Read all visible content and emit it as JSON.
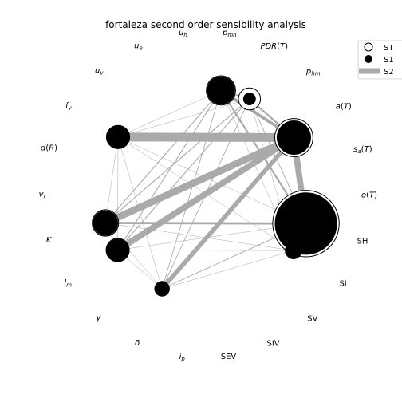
{
  "chart_data": {
    "type": "network",
    "title": "fortaleza second order sensibility analysis",
    "parameters": [
      {
        "id": "u_h",
        "label": "u_h",
        "label_html": "<tspan font-style=\"italic\">u</tspan><tspan font-size=\"7\" dy=\"2\" font-style=\"italic\">h</tspan>",
        "ST": 0.0,
        "S1": 0.0
      },
      {
        "id": "p_mh",
        "label": "p_mh",
        "label_html": "<tspan font-style=\"italic\">p</tspan><tspan font-size=\"7\" dy=\"2\" font-style=\"italic\">mh</tspan>",
        "ST": 0.16,
        "S1": 0.15
      },
      {
        "id": "PDR",
        "label": "PDR(T)",
        "label_html": "<tspan font-style=\"italic\">PDR</tspan>(<tspan font-style=\"italic\">T</tspan>)",
        "ST": 0.09,
        "S1": 0.03
      },
      {
        "id": "p_hm",
        "label": "p_hm",
        "label_html": "<tspan font-style=\"italic\">p</tspan><tspan font-size=\"7\" dy=\"2\" font-style=\"italic\">hm</tspan>",
        "ST": 0.0,
        "S1": 0.0
      },
      {
        "id": "aT",
        "label": "a(T)",
        "label_html": "<tspan font-style=\"italic\">a</tspan>(<tspan font-style=\"italic\">T</tspan>)",
        "ST": 0.27,
        "S1": 0.22
      },
      {
        "id": "saT",
        "label": "s_a(T)",
        "label_html": "<tspan font-style=\"italic\">s</tspan><tspan font-size=\"7\" dy=\"2\" font-style=\"italic\">a</tspan><tspan dy=\"-2\">(</tspan><tspan font-style=\"italic\">T</tspan>)",
        "ST": 0.0,
        "S1": 0.0
      },
      {
        "id": "oT",
        "label": "o(T)",
        "label_html": "<tspan font-style=\"italic\">o</tspan>(<tspan font-style=\"italic\">T</tspan>)",
        "ST": 0.0,
        "S1": 0.0
      },
      {
        "id": "SH",
        "label": "SH",
        "label_html": "SH",
        "ST": 0.82,
        "S1": 0.72
      },
      {
        "id": "SI",
        "label": "SI",
        "label_html": "SI",
        "ST": 0.05,
        "S1": 0.05
      },
      {
        "id": "SV",
        "label": "SV",
        "label_html": "SV",
        "ST": 0.0,
        "S1": 0.0
      },
      {
        "id": "SIV",
        "label": "SIV",
        "label_html": "SIV",
        "ST": 0.0,
        "S1": 0.0
      },
      {
        "id": "SEV",
        "label": "SEV",
        "label_html": "SEV",
        "ST": 0.0,
        "S1": 0.0
      },
      {
        "id": "i_p",
        "label": "i_p",
        "label_html": "<tspan font-style=\"italic\">i</tspan><tspan font-size=\"7\" dy=\"2\" font-style=\"italic\">p</tspan>",
        "ST": 0.0,
        "S1": 0.0
      },
      {
        "id": "delta",
        "label": "δ",
        "label_html": "<tspan font-style=\"italic\">δ</tspan>",
        "ST": 0.04,
        "S1": 0.04
      },
      {
        "id": "gamma",
        "label": "γ",
        "label_html": "<tspan font-style=\"italic\">γ</tspan>",
        "ST": 0.0,
        "S1": 0.0
      },
      {
        "id": "l_m",
        "label": "l_m",
        "label_html": "<tspan font-style=\"italic\">l</tspan><tspan font-size=\"7\" dy=\"2\" font-style=\"italic\">m</tspan>",
        "ST": 0.1,
        "S1": 0.1
      },
      {
        "id": "K",
        "label": "K",
        "label_html": "<tspan font-style=\"italic\">K</tspan>",
        "ST": 0.13,
        "S1": 0.12
      },
      {
        "id": "v_t",
        "label": "v_t",
        "label_html": "<tspan font-style=\"italic\">v</tspan><tspan font-size=\"7\" dy=\"2\" font-style=\"italic\">t</tspan>",
        "ST": 0.0,
        "S1": 0.0
      },
      {
        "id": "dR",
        "label": "d(R)",
        "label_html": "<tspan font-style=\"italic\">d</tspan>(<tspan font-style=\"italic\">R</tspan>)",
        "ST": 0.0,
        "S1": 0.0
      },
      {
        "id": "f_v",
        "label": "f_v",
        "label_html": "<tspan font-style=\"italic\">f</tspan><tspan font-size=\"7\" dy=\"2\" font-style=\"italic\">v</tspan>",
        "ST": 0.1,
        "S1": 0.1
      },
      {
        "id": "u_v",
        "label": "u_v",
        "label_html": "<tspan font-style=\"italic\">u</tspan><tspan font-size=\"7\" dy=\"2\" font-style=\"italic\">v</tspan>",
        "ST": 0.0,
        "S1": 0.0
      },
      {
        "id": "u_e",
        "label": "u_e",
        "label_html": "<tspan font-style=\"italic\">u</tspan><tspan font-size=\"7\" dy=\"2\" font-style=\"italic\">e</tspan>",
        "ST": 0.0,
        "S1": 0.0
      }
    ],
    "S2": [
      {
        "a": "f_v",
        "b": "aT",
        "value": 0.1
      },
      {
        "a": "K",
        "b": "aT",
        "value": 0.08
      },
      {
        "a": "l_m",
        "b": "aT",
        "value": 0.07
      },
      {
        "a": "delta",
        "b": "aT",
        "value": 0.05
      },
      {
        "a": "aT",
        "b": "SH",
        "value": 0.07
      },
      {
        "a": "K",
        "b": "SH",
        "value": 0.025
      },
      {
        "a": "p_mh",
        "b": "aT",
        "value": 0.035
      },
      {
        "a": "p_mh",
        "b": "SH",
        "value": 0.02
      },
      {
        "a": "PDR",
        "b": "aT",
        "value": 0.02
      },
      {
        "a": "p_mh",
        "b": "PDR",
        "value": 0.015
      },
      {
        "a": "K",
        "b": "p_mh",
        "value": 0.01
      },
      {
        "a": "K",
        "b": "PDR",
        "value": 0.01
      },
      {
        "a": "l_m",
        "b": "p_mh",
        "value": 0.01
      },
      {
        "a": "l_m",
        "b": "PDR",
        "value": 0.01
      },
      {
        "a": "delta",
        "b": "p_mh",
        "value": 0.008
      },
      {
        "a": "delta",
        "b": "PDR",
        "value": 0.008
      },
      {
        "a": "delta",
        "b": "SH",
        "value": 0.008
      },
      {
        "a": "PDR",
        "b": "SH",
        "value": 0.008
      },
      {
        "a": "f_v",
        "b": "p_mh",
        "value": 0.003
      },
      {
        "a": "f_v",
        "b": "PDR",
        "value": 0.003
      },
      {
        "a": "f_v",
        "b": "SH",
        "value": 0.003
      },
      {
        "a": "f_v",
        "b": "SI",
        "value": 0.003
      },
      {
        "a": "f_v",
        "b": "K",
        "value": 0.003
      },
      {
        "a": "f_v",
        "b": "l_m",
        "value": 0.003
      },
      {
        "a": "f_v",
        "b": "delta",
        "value": 0.003
      },
      {
        "a": "K",
        "b": "l_m",
        "value": 0.003
      },
      {
        "a": "K",
        "b": "delta",
        "value": 0.003
      },
      {
        "a": "K",
        "b": "SI",
        "value": 0.003
      },
      {
        "a": "l_m",
        "b": "delta",
        "value": 0.003
      },
      {
        "a": "l_m",
        "b": "SH",
        "value": 0.003
      },
      {
        "a": "l_m",
        "b": "SI",
        "value": 0.003
      },
      {
        "a": "delta",
        "b": "SI",
        "value": 0.003
      },
      {
        "a": "p_mh",
        "b": "SI",
        "value": 0.003
      },
      {
        "a": "PDR",
        "b": "SI",
        "value": 0.003
      },
      {
        "a": "aT",
        "b": "SI",
        "value": 0.003
      },
      {
        "a": "SH",
        "b": "SI",
        "value": 0.003
      }
    ],
    "legend": {
      "position": "top-right",
      "entries": [
        "ST",
        "S1",
        "S2"
      ]
    },
    "colors": {
      "node_fill": "#000000",
      "node_outline": "#000000",
      "edge": "#aaaaaa"
    }
  }
}
